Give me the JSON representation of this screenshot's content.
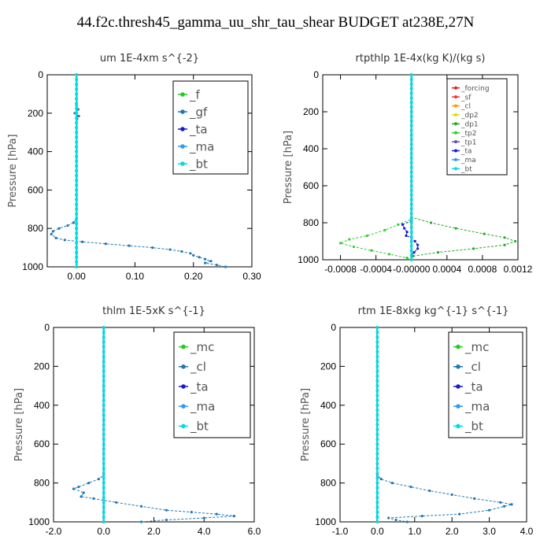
{
  "figure_title": "44.f2c.thresh45_gamma_uu_shr_tau_shear  BUDGET at238E,27N",
  "chart_data": [
    {
      "type": "line",
      "title": "um   1E-4xm s^{-2}",
      "ylabel": "Pressure [hPa]",
      "xlim": [
        -0.05,
        0.3
      ],
      "ylim": [
        1000,
        0
      ],
      "xticks": [
        0.0,
        0.1,
        0.2,
        0.3
      ],
      "xtick_labels": [
        "0.00",
        "0.10",
        "0.20",
        "0.30"
      ],
      "yticks": [
        0,
        200,
        400,
        600,
        800,
        1000
      ],
      "legend_size": "large",
      "series": [
        {
          "name": "_f",
          "color": "#22cc22",
          "y": [
            0,
            1000
          ],
          "x": [
            0,
            0
          ]
        },
        {
          "name": "_gf",
          "color": "#1f77b4",
          "y": [
            0,
            160,
            180,
            200,
            215,
            230,
            250,
            300,
            400,
            500,
            600,
            700,
            750,
            770,
            785,
            800,
            815,
            830,
            850,
            860,
            870,
            880,
            890,
            900,
            910,
            920,
            930,
            940,
            950,
            960,
            970,
            980,
            990,
            1000
          ],
          "x": [
            0,
            0,
            0.003,
            -0.003,
            0.004,
            0.001,
            0,
            0,
            0,
            0,
            0,
            0,
            0,
            -0.005,
            -0.015,
            -0.03,
            -0.04,
            -0.043,
            -0.035,
            -0.02,
            0.01,
            0.05,
            0.09,
            0.13,
            0.16,
            0.18,
            0.195,
            0.2,
            0.21,
            0.22,
            0.23,
            0.22,
            0.24,
            0.255
          ]
        },
        {
          "name": "_ta",
          "color": "#1a1acc",
          "y": [
            0,
            1000
          ],
          "x": [
            0,
            0
          ]
        },
        {
          "name": "_ma",
          "color": "#3399ee",
          "y": [
            0,
            1000
          ],
          "x": [
            0,
            0
          ]
        },
        {
          "name": "_bt",
          "color": "#00dddd",
          "y": [
            0,
            1000
          ],
          "x": [
            0,
            0
          ]
        }
      ]
    },
    {
      "type": "line",
      "title": "rtpthlp   1E-4x(kg K)/(kg s)",
      "ylabel": "Pressure [hPa]",
      "xlim": [
        -0.001,
        0.0012
      ],
      "ylim": [
        1000,
        0
      ],
      "xticks": [
        -0.0008,
        -0.0004,
        0.0,
        0.0004,
        0.0008,
        0.0012
      ],
      "xtick_labels": [
        "-0.0008",
        "-0.0004",
        "-0.00000",
        "0.0004",
        "0.0008",
        "0.0012"
      ],
      "yticks": [
        0,
        200,
        400,
        600,
        800,
        1000
      ],
      "legend_size": "small",
      "series": [
        {
          "name": "_forcing",
          "color": "#dd2222",
          "y": [
            0,
            1000
          ],
          "x": [
            0,
            0
          ]
        },
        {
          "name": "_sf",
          "color": "#ee3333",
          "y": [
            0,
            1000
          ],
          "x": [
            0,
            0
          ]
        },
        {
          "name": "_cl",
          "color": "#ff9900",
          "y": [
            0,
            1000
          ],
          "x": [
            0,
            0
          ]
        },
        {
          "name": "_dp2",
          "color": "#dddd00",
          "y": [
            0,
            1000
          ],
          "x": [
            0,
            0
          ]
        },
        {
          "name": "_dp1",
          "color": "#22aa22",
          "y": [
            0,
            770,
            800,
            830,
            860,
            880,
            900,
            920,
            940,
            960,
            980,
            1000
          ],
          "x": [
            0,
            0,
            0.00022,
            0.0005,
            0.00082,
            0.00105,
            0.00117,
            0.00105,
            0.0007,
            0.0003,
            2e-05,
            0
          ]
        },
        {
          "name": "_tp2",
          "color": "#33cc33",
          "y": [
            0,
            780,
            810,
            840,
            870,
            890,
            910,
            930,
            950,
            970,
            990,
            1000
          ],
          "x": [
            0,
            0,
            -0.00015,
            -0.0003,
            -0.0005,
            -0.0007,
            -0.0008,
            -0.00065,
            -0.00045,
            -0.00025,
            -5e-05,
            0
          ]
        },
        {
          "name": "_tp1",
          "color": "#5555aa",
          "y": [
            0,
            1000
          ],
          "x": [
            0,
            0
          ]
        },
        {
          "name": "_ta",
          "color": "#1a1acc",
          "y": [
            0,
            790,
            810,
            830,
            850,
            870,
            880,
            900,
            920,
            940,
            960,
            980,
            1000
          ],
          "x": [
            0,
            0,
            -0.0001,
            -8e-05,
            -5e-05,
            -6e-05,
            0,
            4e-05,
            7e-05,
            7e-05,
            3e-05,
            0,
            0
          ]
        },
        {
          "name": "_ma",
          "color": "#3399ee",
          "y": [
            0,
            1000
          ],
          "x": [
            0,
            0
          ]
        },
        {
          "name": "_bt",
          "color": "#00dddd",
          "y": [
            0,
            1000
          ],
          "x": [
            0,
            0
          ]
        }
      ]
    },
    {
      "type": "line",
      "title": "thlm   1E-5xK s^{-1}",
      "ylabel": "Pressure [hPa]",
      "xlim": [
        -2.0,
        6.0
      ],
      "ylim": [
        1000,
        0
      ],
      "xticks": [
        -2,
        0,
        2,
        4,
        6
      ],
      "xtick_labels": [
        "-2.0",
        "0.0",
        "2.0",
        "4.0",
        "6.0"
      ],
      "yticks": [
        0,
        200,
        400,
        600,
        800,
        1000
      ],
      "legend_size": "large",
      "series": [
        {
          "name": "_mc",
          "color": "#22cc22",
          "y": [
            0,
            1000
          ],
          "x": [
            0,
            0
          ]
        },
        {
          "name": "_cl",
          "color": "#1f77b4",
          "y": [
            0,
            760,
            780,
            800,
            820,
            830,
            850,
            870,
            880,
            900,
            920,
            940,
            950,
            960,
            970,
            980,
            990,
            1000
          ],
          "x": [
            0,
            0,
            -0.2,
            -0.6,
            -1.0,
            -1.2,
            -0.8,
            -0.9,
            -0.4,
            0.5,
            1.5,
            2.5,
            3.5,
            4.5,
            5.2,
            4.0,
            2.5,
            1.5
          ]
        },
        {
          "name": "_ta",
          "color": "#1a1acc",
          "y": [
            0,
            1000
          ],
          "x": [
            0,
            0
          ]
        },
        {
          "name": "_ma",
          "color": "#3399ee",
          "y": [
            0,
            1000
          ],
          "x": [
            0,
            0
          ]
        },
        {
          "name": "_bt",
          "color": "#00dddd",
          "y": [
            0,
            1000
          ],
          "x": [
            0,
            0
          ]
        }
      ]
    },
    {
      "type": "line",
      "title": "rtm   1E-8xkg kg^{-1} s^{-1}",
      "ylabel": "Pressure [hPa]",
      "xlim": [
        -1.0,
        4.0
      ],
      "ylim": [
        1000,
        0
      ],
      "xticks": [
        -1,
        0,
        1,
        2,
        3,
        4
      ],
      "xtick_labels": [
        "-1.0",
        "0.0",
        "1.0",
        "2.0",
        "3.0",
        "4.0"
      ],
      "yticks": [
        0,
        200,
        400,
        600,
        800,
        1000
      ],
      "legend_size": "large",
      "series": [
        {
          "name": "_mc",
          "color": "#22cc22",
          "y": [
            0,
            1000
          ],
          "x": [
            0,
            0
          ]
        },
        {
          "name": "_cl",
          "color": "#1f77b4",
          "y": [
            0,
            760,
            780,
            800,
            820,
            840,
            860,
            880,
            900,
            910,
            920,
            940,
            960,
            970,
            980,
            990,
            1000
          ],
          "x": [
            0,
            0,
            0.1,
            0.4,
            0.9,
            1.4,
            2.0,
            2.6,
            3.3,
            3.6,
            3.4,
            3.0,
            2.2,
            1.2,
            0.3,
            0.5,
            0.8
          ]
        },
        {
          "name": "_ta",
          "color": "#1a1acc",
          "y": [
            0,
            1000
          ],
          "x": [
            0,
            0
          ]
        },
        {
          "name": "_ma",
          "color": "#3399ee",
          "y": [
            0,
            1000
          ],
          "x": [
            0,
            0
          ]
        },
        {
          "name": "_bt",
          "color": "#00dddd",
          "y": [
            0,
            1000
          ],
          "x": [
            0,
            0
          ]
        }
      ]
    }
  ]
}
